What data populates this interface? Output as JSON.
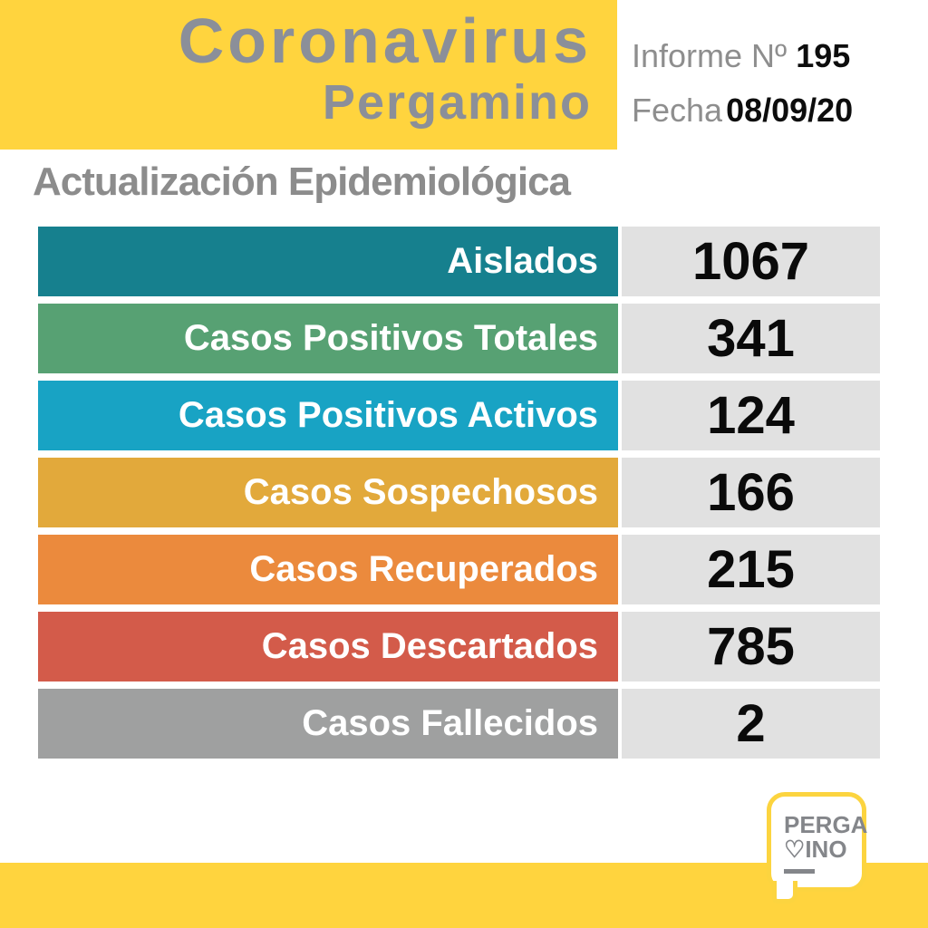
{
  "header": {
    "title_line1": "Coronavirus",
    "title_line2": "Pergamino",
    "report_label": "Informe Nº",
    "report_number": "195",
    "date_label": "Fecha",
    "date_value": "08/09/20"
  },
  "section_title": "Actualización Epidemiológica",
  "chart_data": {
    "type": "table",
    "title": "Actualización Epidemiológica",
    "subtitle": "Coronavirus Pergamino — Informe Nº 195 — Fecha 08/09/20",
    "categories": [
      "Aislados",
      "Casos Positivos Totales",
      "Casos Positivos Activos",
      "Casos Sospechosos",
      "Casos Recuperados",
      "Casos Descartados",
      "Casos Fallecidos"
    ],
    "values": [
      1067,
      341,
      124,
      166,
      215,
      785,
      2
    ],
    "row_colors": [
      "#16808e",
      "#57a173",
      "#18a3c4",
      "#e2a93b",
      "#eb8a3d",
      "#d35b4a",
      "#9fa0a0"
    ],
    "label_text_color": "#ffffff",
    "value_bg": "#e1e1e1",
    "value_text_color": "#0a0a0a"
  },
  "footer": {
    "logo": {
      "line1": "PERGA",
      "heart_icon": "♡",
      "line2": "INO"
    }
  },
  "colors": {
    "brand_yellow": "#ffd43e",
    "logo_border_yellow": "#fcd43f",
    "title_gray": "#8b8f99",
    "section_gray": "#8c8c8c",
    "report_label_gray": "#8e8e8e",
    "report_value_black": "#0d0d0d",
    "logo_gray": "#84868a"
  }
}
